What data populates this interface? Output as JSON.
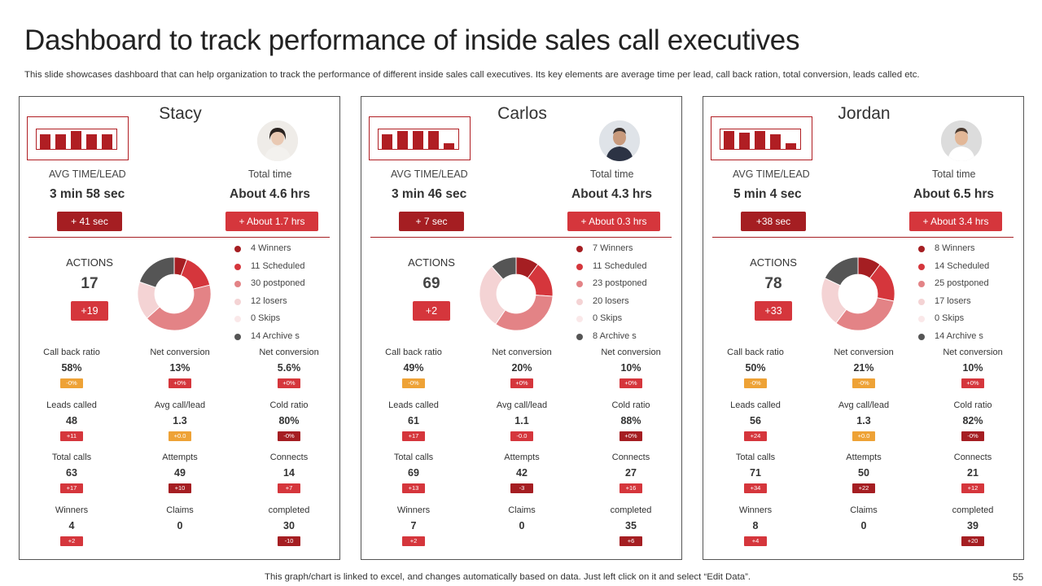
{
  "header": {
    "title": "Dashboard to track performance of inside sales call executives",
    "subtitle": "This slide showcases dashboard that can help organization to track the performance of different inside sales call executives. Its key elements are average time per lead, call back ration, total conversion, leads called etc."
  },
  "colors": {
    "dark_red": "#a51e22",
    "red": "#d5363c",
    "pink": "#e38386",
    "light_pink": "#f4d3d4",
    "very_light_pink": "#fae8e9",
    "gray": "#555555",
    "orange": "#eea236"
  },
  "labels": {
    "avg_time": "AVG TIME/LEAD",
    "total_time": "Total time",
    "actions": "ACTIONS"
  },
  "executives": [
    {
      "name": "Stacy",
      "mini_bar_values": [
        0.8,
        0.8,
        1.0,
        0.8,
        0.8
      ],
      "avg_time": "3 min 58 sec",
      "avg_time_delta": "+ 41 sec",
      "total_time": "About 4.6 hrs",
      "total_time_delta": "+ About  1.7 hrs",
      "actions": "17",
      "actions_delta": "+19",
      "donut_values": [
        4,
        11,
        30,
        12,
        0,
        14
      ],
      "legend": [
        "4 Winners",
        "11 Scheduled",
        "30 postponed",
        "12 losers",
        "0 Skips",
        "14 Archive s"
      ],
      "metrics": [
        {
          "label": "Call back ratio",
          "value": "58%",
          "delta": "-0%",
          "color": "#eea236"
        },
        {
          "label": "Net conversion",
          "value": "13%",
          "delta": "+0%",
          "color": "#d5363c"
        },
        {
          "label": "Net conversion",
          "value": "5.6%",
          "delta": "+0%",
          "color": "#d5363c"
        },
        {
          "label": "Leads called",
          "value": "48",
          "delta": "+11",
          "color": "#d5363c"
        },
        {
          "label": "Avg call/lead",
          "value": "1.3",
          "delta": "+0.0",
          "color": "#eea236"
        },
        {
          "label": "Cold ratio",
          "value": "80%",
          "delta": "-0%",
          "color": "#a51e22"
        },
        {
          "label": "Total calls",
          "value": "63",
          "delta": "+17",
          "color": "#d5363c"
        },
        {
          "label": "Attempts",
          "value": "49",
          "delta": "+10",
          "color": "#a51e22"
        },
        {
          "label": "Connects",
          "value": "14",
          "delta": "+7",
          "color": "#d5363c"
        },
        {
          "label": "Winners",
          "value": "4",
          "delta": "+2",
          "color": "#d5363c"
        },
        {
          "label": "Claims",
          "value": "0",
          "delta": "",
          "color": ""
        },
        {
          "label": "completed",
          "value": "30",
          "delta": "-10",
          "color": "#a51e22"
        }
      ]
    },
    {
      "name": "Carlos",
      "mini_bar_values": [
        0.8,
        1.0,
        1.0,
        1.0,
        0.3
      ],
      "avg_time": "3 min 46 sec",
      "avg_time_delta": "+ 7 sec",
      "total_time": "About 4.3 hrs",
      "total_time_delta": "+ About  0.3 hrs",
      "actions": "69",
      "actions_delta": "+2",
      "donut_values": [
        7,
        11,
        23,
        20,
        0,
        8
      ],
      "legend": [
        "7 Winners",
        "11 Scheduled",
        "23 postponed",
        "20 losers",
        "0 Skips",
        "8 Archive s"
      ],
      "metrics": [
        {
          "label": "Call back ratio",
          "value": "49%",
          "delta": "-0%",
          "color": "#eea236"
        },
        {
          "label": "Net conversion",
          "value": "20%",
          "delta": "+0%",
          "color": "#d5363c"
        },
        {
          "label": "Net conversion",
          "value": "10%",
          "delta": "+0%",
          "color": "#d5363c"
        },
        {
          "label": "Leads called",
          "value": "61",
          "delta": "+17",
          "color": "#d5363c"
        },
        {
          "label": "Avg call/lead",
          "value": "1.1",
          "delta": "-0.0",
          "color": "#d5363c"
        },
        {
          "label": "Cold ratio",
          "value": "88%",
          "delta": "+0%",
          "color": "#a51e22"
        },
        {
          "label": "Total calls",
          "value": "69",
          "delta": "+13",
          "color": "#d5363c"
        },
        {
          "label": "Attempts",
          "value": "42",
          "delta": "-3",
          "color": "#a51e22"
        },
        {
          "label": "Connects",
          "value": "27",
          "delta": "+16",
          "color": "#d5363c"
        },
        {
          "label": "Winners",
          "value": "7",
          "delta": "+2",
          "color": "#d5363c"
        },
        {
          "label": "Claims",
          "value": "0",
          "delta": "",
          "color": ""
        },
        {
          "label": "completed",
          "value": "35",
          "delta": "+6",
          "color": "#a51e22"
        }
      ]
    },
    {
      "name": "Jordan",
      "mini_bar_values": [
        1.0,
        0.9,
        1.0,
        0.8,
        0.3
      ],
      "avg_time": "5 min 4 sec",
      "avg_time_delta": "+38 sec",
      "total_time": "About 6.5 hrs",
      "total_time_delta": "+ About  3.4 hrs",
      "actions": "78",
      "actions_delta": "+33",
      "donut_values": [
        8,
        14,
        25,
        17,
        0,
        14
      ],
      "legend": [
        "8 Winners",
        "14 Scheduled",
        "25 postponed",
        "17 losers",
        "0 Skips",
        "14 Archive s"
      ],
      "metrics": [
        {
          "label": "Call back ratio",
          "value": "50%",
          "delta": "-0%",
          "color": "#eea236"
        },
        {
          "label": "Net conversion",
          "value": "21%",
          "delta": "-0%",
          "color": "#eea236"
        },
        {
          "label": "Net conversion",
          "value": "10%",
          "delta": "+0%",
          "color": "#d5363c"
        },
        {
          "label": "Leads called",
          "value": "56",
          "delta": "+24",
          "color": "#d5363c"
        },
        {
          "label": "Avg call/lead",
          "value": "1.3",
          "delta": "+0.0",
          "color": "#eea236"
        },
        {
          "label": "Cold ratio",
          "value": "82%",
          "delta": "-0%",
          "color": "#a51e22"
        },
        {
          "label": "Total calls",
          "value": "71",
          "delta": "+34",
          "color": "#d5363c"
        },
        {
          "label": "Attempts",
          "value": "50",
          "delta": "+22",
          "color": "#a51e22"
        },
        {
          "label": "Connects",
          "value": "21",
          "delta": "+12",
          "color": "#d5363c"
        },
        {
          "label": "Winners",
          "value": "8",
          "delta": "+4",
          "color": "#d5363c"
        },
        {
          "label": "Claims",
          "value": "0",
          "delta": "",
          "color": ""
        },
        {
          "label": "completed",
          "value": "39",
          "delta": "+20",
          "color": "#a51e22"
        }
      ]
    }
  ],
  "footer": {
    "note": "This graph/chart is linked to excel, and changes automatically based on data. Just left click on it and select “Edit Data”.",
    "page_number": "55"
  }
}
